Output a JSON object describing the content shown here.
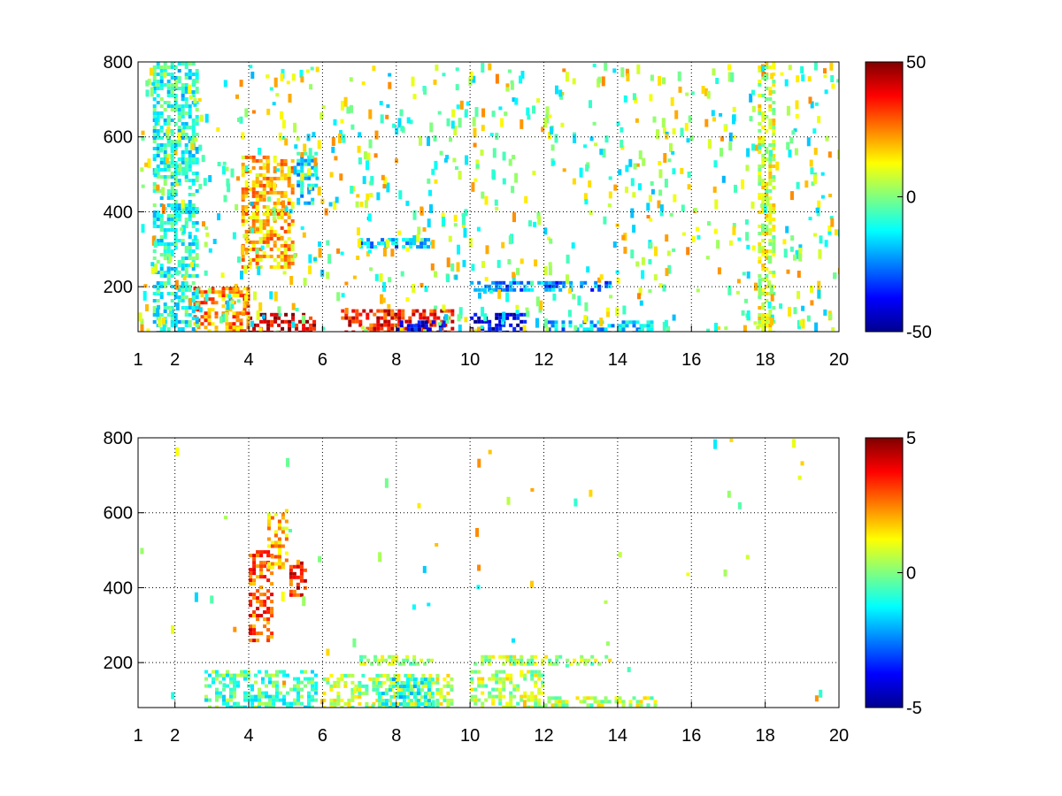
{
  "chart_data": [
    {
      "type": "heatmap",
      "title": "",
      "xlabel": "",
      "ylabel": "",
      "x_ticks": [
        1,
        2,
        4,
        6,
        8,
        10,
        12,
        14,
        16,
        18,
        20
      ],
      "y_ticks": [
        200,
        400,
        600,
        800
      ],
      "xlim": [
        1,
        20
      ],
      "ylim": [
        80,
        800
      ],
      "grid": true,
      "colorbar": {
        "min": -50,
        "max": 50,
        "ticks": [
          50,
          0,
          -50
        ],
        "colormap": "jet"
      },
      "regions": [
        {
          "x": [
            4.0,
            5.8
          ],
          "y": [
            80,
            130
          ],
          "value": 42,
          "note": "strong positive band"
        },
        {
          "x": [
            2.5,
            4.0
          ],
          "y": [
            80,
            200
          ],
          "value": 25
        },
        {
          "x": [
            3.8,
            5.2
          ],
          "y": [
            250,
            550
          ],
          "value": 20
        },
        {
          "x": [
            5.3,
            5.8
          ],
          "y": [
            420,
            560
          ],
          "value": -15
        },
        {
          "x": [
            6.5,
            9.5
          ],
          "y": [
            80,
            140
          ],
          "value": 35
        },
        {
          "x": [
            8.0,
            9.3
          ],
          "y": [
            80,
            110
          ],
          "value": -35
        },
        {
          "x": [
            10.0,
            11.5
          ],
          "y": [
            80,
            130
          ],
          "value": -40
        },
        {
          "x": [
            10.0,
            13.8
          ],
          "y": [
            195,
            215
          ],
          "value": -25
        },
        {
          "x": [
            7.0,
            9.0
          ],
          "y": [
            310,
            330
          ],
          "value": -20
        },
        {
          "x": [
            12.0,
            15.0
          ],
          "y": [
            80,
            110
          ],
          "value": -20
        },
        {
          "x": [
            17.8,
            18.2
          ],
          "y": [
            80,
            800
          ],
          "value": 8,
          "note": "vertical streak"
        },
        {
          "x": [
            1.4,
            2.6
          ],
          "y": [
            80,
            800
          ],
          "value": -10,
          "note": "vertical streaks"
        }
      ]
    },
    {
      "type": "heatmap",
      "title": "",
      "xlabel": "",
      "ylabel": "",
      "x_ticks": [
        1,
        2,
        4,
        6,
        8,
        10,
        12,
        14,
        16,
        18,
        20
      ],
      "y_ticks": [
        200,
        400,
        600,
        800
      ],
      "xlim": [
        1,
        20
      ],
      "ylim": [
        80,
        800
      ],
      "grid": true,
      "colorbar": {
        "min": -5,
        "max": 5,
        "ticks": [
          5,
          0,
          -5
        ],
        "colormap": "jet"
      },
      "regions": [
        {
          "x": [
            2.8,
            5.8
          ],
          "y": [
            80,
            180
          ],
          "value": -0.5
        },
        {
          "x": [
            4.0,
            4.6
          ],
          "y": [
            250,
            500
          ],
          "value": 3
        },
        {
          "x": [
            4.5,
            5.0
          ],
          "y": [
            450,
            610
          ],
          "value": 2
        },
        {
          "x": [
            5.1,
            5.5
          ],
          "y": [
            380,
            470
          ],
          "value": 3.5
        },
        {
          "x": [
            6.0,
            9.5
          ],
          "y": [
            80,
            170
          ],
          "value": 0.5
        },
        {
          "x": [
            7.5,
            9.0
          ],
          "y": [
            80,
            160
          ],
          "value": -1
        },
        {
          "x": [
            7.0,
            9.0
          ],
          "y": [
            200,
            220
          ],
          "value": 0.5
        },
        {
          "x": [
            10.0,
            13.8
          ],
          "y": [
            200,
            220
          ],
          "value": 0.5
        },
        {
          "x": [
            10.0,
            12.0
          ],
          "y": [
            80,
            180
          ],
          "value": 0.5
        },
        {
          "x": [
            12.0,
            15.0
          ],
          "y": [
            80,
            110
          ],
          "value": 0.5
        }
      ]
    }
  ]
}
